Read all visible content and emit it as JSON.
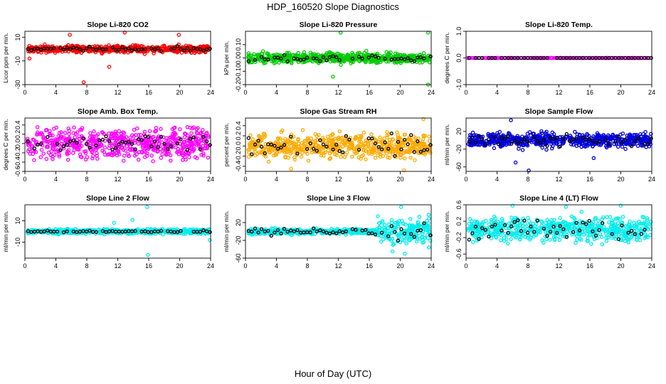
{
  "figure": {
    "title": "HDP_160520  Slope Diagnostics",
    "xlabel": "Hour of Day (UTC)"
  },
  "chart_data": [
    {
      "id": "co2",
      "type": "scatter",
      "title": "Slope Li-820 CO2",
      "ylabel": "Licor ppm per min.",
      "color": "#ff0000",
      "xlim": [
        0,
        24
      ],
      "ylim": [
        -30,
        15
      ],
      "xticks": [
        "0",
        "4",
        "8",
        "12",
        "16",
        "20",
        "24"
      ],
      "yticks": [
        -30,
        -10,
        10
      ],
      "ytick_labels": [
        "-30",
        "-10",
        "10"
      ],
      "spread": 4,
      "outliers": [
        [
          5.8,
          12
        ],
        [
          7.6,
          -28
        ],
        [
          10.9,
          -15
        ],
        [
          12.9,
          14
        ],
        [
          19.9,
          12
        ],
        [
          0.6,
          -8
        ]
      ],
      "overlay_spread": 2.5
    },
    {
      "id": "pressure",
      "type": "scatter",
      "title": "Slope Li-820 Pressure",
      "ylabel": "kPa per min.",
      "color": "#00cc00",
      "xlim": [
        0,
        24
      ],
      "ylim": [
        -0.2,
        0.2
      ],
      "xticks": [
        "0",
        "4",
        "8",
        "12",
        "16",
        "20",
        "24"
      ],
      "yticks": [
        -0.2,
        -0.1,
        0.0,
        0.1
      ],
      "ytick_labels": [
        "-0.20",
        "-0.10",
        "0.00",
        "0.10"
      ],
      "spread": 0.05,
      "outliers": [
        [
          12.3,
          0.19
        ],
        [
          23.6,
          0.19
        ],
        [
          23.6,
          -0.2
        ],
        [
          11.3,
          -0.14
        ]
      ],
      "overlay_spread": 0.03
    },
    {
      "id": "temp",
      "type": "scatter",
      "title": "Slope Li-820 Temp.",
      "ylabel": "degrees C per min.",
      "color": "#ff00ff",
      "xlim": [
        0,
        24
      ],
      "ylim": [
        -1.0,
        1.0
      ],
      "xticks": [
        "0",
        "4",
        "8",
        "12",
        "16",
        "20",
        "24"
      ],
      "yticks": [
        -1.0,
        0.0,
        1.0
      ],
      "ytick_labels": [
        "-1.0",
        "0.0",
        "1.0"
      ],
      "spread": 0.0,
      "outliers": [],
      "overlay_spread": 0.0
    },
    {
      "id": "box",
      "type": "scatter",
      "title": "Slope Amb. Box Temp.",
      "ylabel": "degrees C per min.",
      "color": "#ff00ff",
      "xlim": [
        0,
        24
      ],
      "ylim": [
        -0.6,
        0.55
      ],
      "xticks": [
        "0",
        "4",
        "8",
        "12",
        "16",
        "20",
        "24"
      ],
      "yticks": [
        -0.6,
        -0.4,
        -0.2,
        0.0,
        0.2,
        0.4
      ],
      "ytick_labels": [
        "-0.6",
        "-0.4",
        "-0.2",
        "0.0",
        "0.2",
        "0.4"
      ],
      "spread": 0.45,
      "outliers": [],
      "overlay_spread": 0.3
    },
    {
      "id": "rh",
      "type": "scatter",
      "title": "Slope Gas Stream RH",
      "ylabel": "percent per min.",
      "color": "#ffaa00",
      "xlim": [
        0,
        24
      ],
      "ylim": [
        -0.5,
        0.55
      ],
      "xticks": [
        "0",
        "4",
        "8",
        "12",
        "16",
        "20",
        "24"
      ],
      "yticks": [
        -0.4,
        -0.2,
        0.0,
        0.2,
        0.4
      ],
      "ytick_labels": [
        "-0.4",
        "-0.2",
        "0.0",
        "0.2",
        "0.4"
      ],
      "spread": 0.35,
      "outliers": [
        [
          23.0,
          0.53
        ],
        [
          20.5,
          -0.48
        ],
        [
          5.9,
          -0.45
        ]
      ],
      "overlay_spread": 0.25
    },
    {
      "id": "sample",
      "type": "scatter",
      "title": "Slope Sample Flow",
      "ylabel": "ml/min per min.",
      "color": "#0000dd",
      "xlim": [
        0,
        24
      ],
      "ylim": [
        -70,
        50
      ],
      "xticks": [
        "0",
        "4",
        "8",
        "12",
        "16",
        "20",
        "24"
      ],
      "yticks": [
        -60,
        -20,
        20
      ],
      "ytick_labels": [
        "-60",
        "-20",
        "20"
      ],
      "spread": 22,
      "outliers": [
        [
          8.1,
          -68
        ],
        [
          6.4,
          -50
        ],
        [
          5.8,
          45
        ],
        [
          16.5,
          -40
        ]
      ],
      "overlay_spread": 15
    },
    {
      "id": "line2",
      "type": "scatter",
      "title": "Slope Line 2 Flow",
      "ylabel": "ml/min per min.",
      "color": "#00eeee",
      "xlim": [
        0,
        24
      ],
      "ylim": [
        -25,
        25
      ],
      "xticks": [
        "0",
        "4",
        "8",
        "12",
        "16",
        "20",
        "24"
      ],
      "yticks": [
        -10,
        10
      ],
      "ytick_labels": [
        "-10",
        "10"
      ],
      "spread": 3,
      "outliers": [
        [
          15.8,
          23
        ],
        [
          15.9,
          -22
        ],
        [
          13.9,
          11
        ],
        [
          11.5,
          8
        ],
        [
          23.9,
          -8
        ]
      ],
      "overlay_spread": 1.2
    },
    {
      "id": "line3",
      "type": "scatter",
      "title": "Slope Line 3 Flow",
      "ylabel": "ml/min per min.",
      "color": "#00eeee",
      "xlim": [
        0,
        24
      ],
      "ylim": [
        -60,
        60
      ],
      "xticks": [
        "0",
        "4",
        "8",
        "12",
        "16",
        "20",
        "24"
      ],
      "yticks": [
        -60,
        -20,
        20
      ],
      "ytick_labels": [
        "-60",
        "-20",
        "20"
      ],
      "spread": 8,
      "late_spread": 40,
      "late_after": 17,
      "outliers": [
        [
          20.1,
          55
        ],
        [
          20.6,
          -50
        ],
        [
          19.0,
          -45
        ]
      ],
      "overlay_spread": 10
    },
    {
      "id": "line4",
      "type": "scatter",
      "title": "Slope Line 4 (LT) Flow",
      "ylabel": "ml/min per min.",
      "color": "#00eeee",
      "xlim": [
        0,
        24
      ],
      "ylim": [
        -0.7,
        0.6
      ],
      "xticks": [
        "0",
        "4",
        "8",
        "12",
        "16",
        "20",
        "24"
      ],
      "yticks": [
        -0.6,
        -0.2,
        0.2,
        0.6
      ],
      "ytick_labels": [
        "-0.6",
        "-0.2",
        "0.2",
        "0.6"
      ],
      "spread": 0.4,
      "outliers": [
        [
          6.0,
          0.58
        ],
        [
          20.0,
          0.58
        ],
        [
          12.9,
          0.55
        ]
      ],
      "overlay_spread": 0.35
    }
  ]
}
